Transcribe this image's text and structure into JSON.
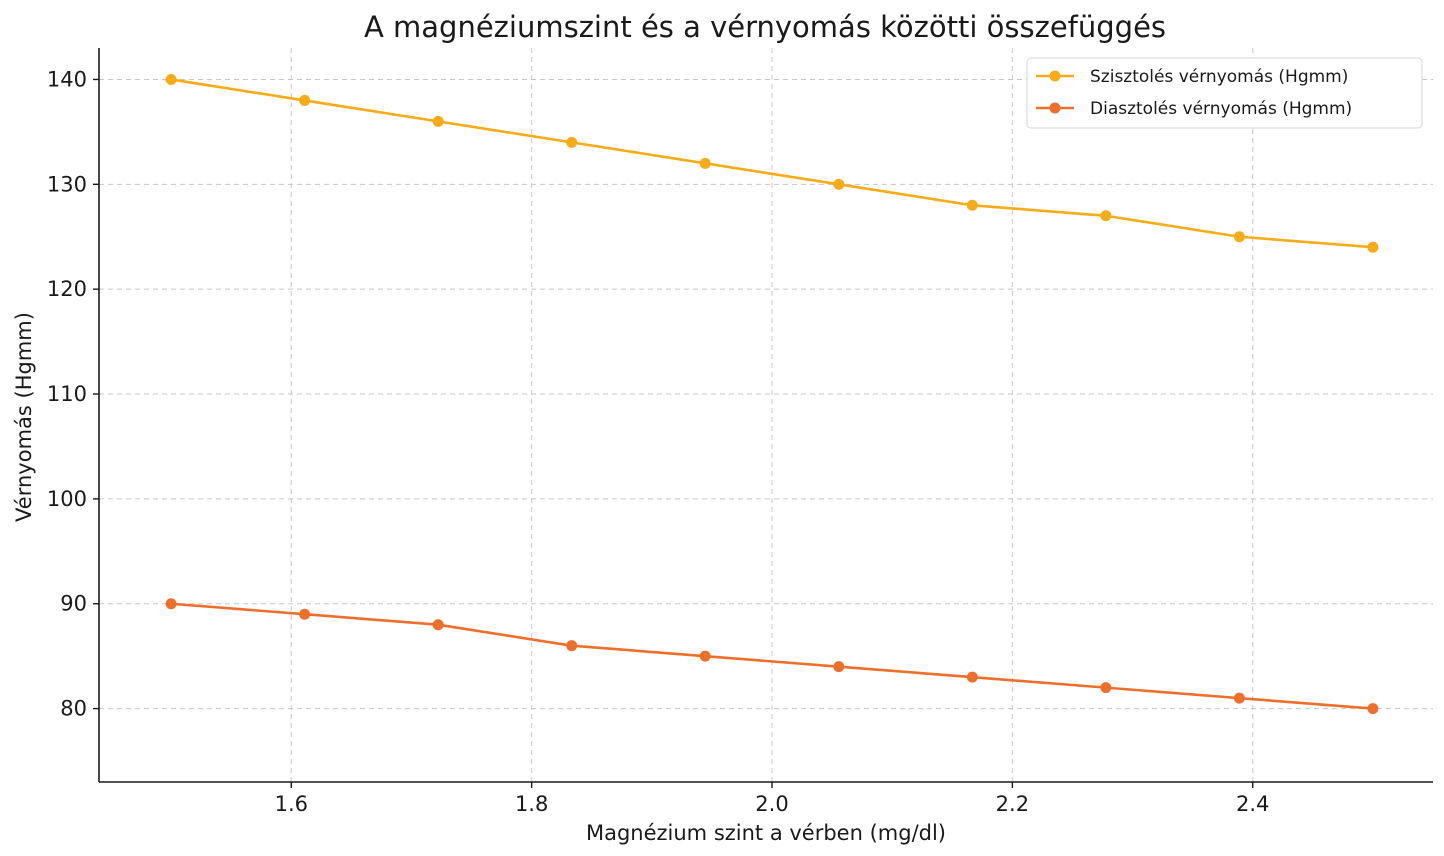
{
  "chart_data": {
    "type": "line",
    "title": "A magnéziumszint és a vérnyomás közötti összefüggés",
    "xlabel": "Magnézium szint a vérben (mg/dl)",
    "ylabel": "Vérnyomás (Hgmm)",
    "x": [
      1.5,
      1.6111,
      1.7222,
      1.8333,
      1.9444,
      2.0556,
      2.1667,
      2.2778,
      2.3889,
      2.5
    ],
    "xlim": [
      1.44,
      2.55
    ],
    "ylim": [
      73,
      143
    ],
    "xticks": [
      1.6,
      1.8,
      2.0,
      2.2,
      2.4
    ],
    "xtick_labels": [
      "1.6",
      "1.8",
      "2.0",
      "2.2",
      "2.4"
    ],
    "yticks": [
      80,
      90,
      100,
      110,
      120,
      130,
      140
    ],
    "ytick_labels": [
      "80",
      "90",
      "100",
      "110",
      "120",
      "130",
      "140"
    ],
    "grid": true,
    "legend_position": "top-right",
    "series": [
      {
        "name": "Szisztolés vérnyomás (Hgmm)",
        "color": "#F5AC18",
        "values": [
          140,
          138,
          136,
          134,
          132,
          130,
          128,
          127,
          125,
          124
        ]
      },
      {
        "name": "Diasztolés vérnyomás (Hgmm)",
        "color": "#EC6F2C",
        "values": [
          90,
          89,
          88,
          86,
          85,
          84,
          83,
          82,
          81,
          80
        ]
      }
    ]
  }
}
